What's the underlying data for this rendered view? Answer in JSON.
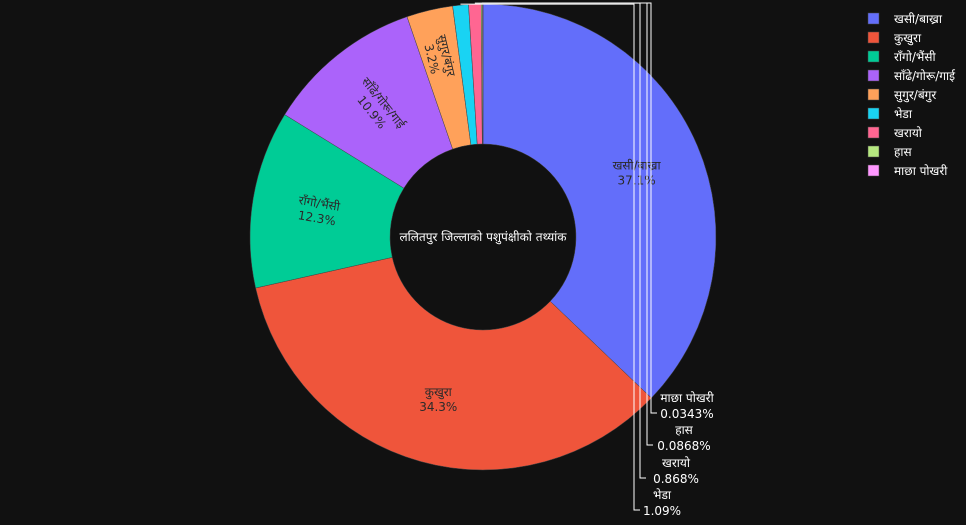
{
  "chart_data": {
    "type": "pie",
    "hole": true,
    "title": "ललितपुर जिल्लाको पशुपंक्षीको तथ्यांक",
    "labels": [
      "खसी/बाख्रा",
      "कुखुरा",
      "राँगो/भैंसी",
      "साँढे/गोरू/गाई",
      "सुगुर/बंगुर",
      "भेडा",
      "खरायो",
      "हास",
      "माछा पोखरी"
    ],
    "values": [
      37.1,
      34.3,
      12.3,
      10.9,
      3.2,
      1.09,
      0.868,
      0.0868,
      0.0343
    ],
    "percent_text": [
      "37.1%",
      "34.3%",
      "12.3%",
      "10.9%",
      "3.2%",
      "1.09%",
      "0.868%",
      "0.0868%",
      "0.0343%"
    ],
    "colors": [
      "#636efa",
      "#ef553b",
      "#00cc96",
      "#ab63fa",
      "#ffa15a",
      "#19d3f3",
      "#ff6692",
      "#b6e880",
      "#ff97ff"
    ],
    "legend_position": "top-right",
    "background": "#111111"
  }
}
